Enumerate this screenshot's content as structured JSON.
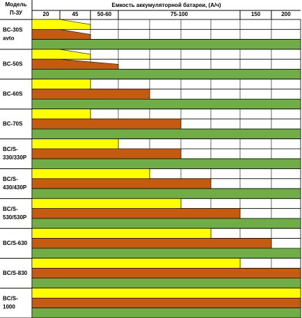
{
  "chart_data": {
    "type": "capacity-table",
    "corner_label": [
      "Модель",
      "П-ЗУ"
    ],
    "header": "Емкость аккумуляторной батареи, (А/ч)",
    "columns": [
      {
        "label": "20",
        "span": 1
      },
      {
        "label": "45",
        "span": 1
      },
      {
        "label": "50-60",
        "span": 1
      },
      {
        "label": "75-100",
        "span": 4
      },
      {
        "label": "150",
        "span": 1
      },
      {
        "label": "200",
        "span": 1
      }
    ],
    "colors": [
      "#ffff00",
      "#c55a11",
      "#70ad47"
    ],
    "rows": [
      {
        "model": [
          "BC-30S",
          "avto"
        ],
        "spans": [
          2,
          2,
          9
        ],
        "tapered": true
      },
      {
        "model": [
          "BC-50S"
        ],
        "spans": [
          2,
          3,
          9
        ],
        "tapered": true
      },
      {
        "model": [
          "BC-60S"
        ],
        "spans": [
          2,
          4,
          9
        ],
        "tapered": false
      },
      {
        "model": [
          "BC-70S"
        ],
        "spans": [
          2,
          5,
          9
        ],
        "tapered": false
      },
      {
        "model": [
          "BC/S-",
          "330/330P"
        ],
        "spans": [
          3,
          5,
          9
        ],
        "tapered": false
      },
      {
        "model": [
          "BC/S-",
          "430/430P"
        ],
        "spans": [
          4,
          6,
          9
        ],
        "tapered": false
      },
      {
        "model": [
          "BC/S-",
          "530/530P"
        ],
        "spans": [
          5,
          7,
          9
        ],
        "tapered": false
      },
      {
        "model": [
          "BC/S-630"
        ],
        "spans": [
          6,
          8,
          9
        ],
        "tapered": false
      },
      {
        "model": [
          "BC/S-830"
        ],
        "spans": [
          7,
          9,
          9
        ],
        "tapered": false
      },
      {
        "model": [
          "BC/S-",
          "1000"
        ],
        "spans": [
          9,
          9,
          9
        ],
        "tapered": false
      }
    ]
  }
}
